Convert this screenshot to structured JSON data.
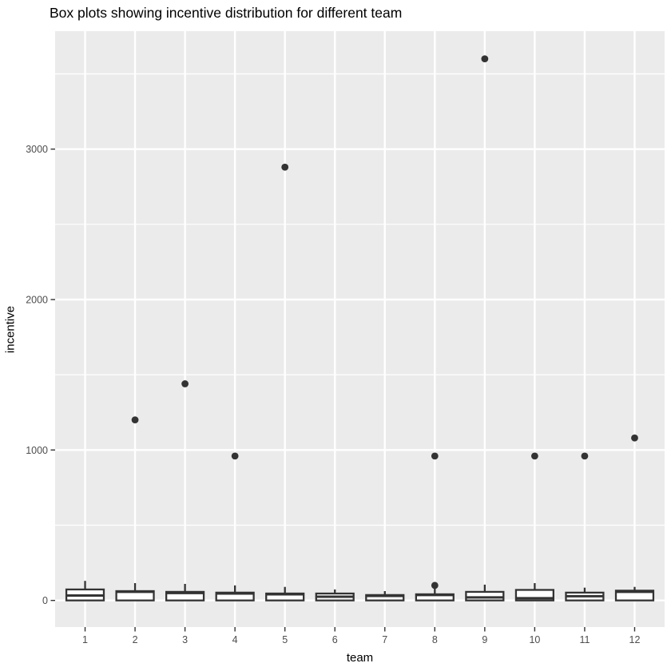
{
  "chart_data": {
    "type": "boxplot",
    "title": "Box plots showing incentive distribution for different team",
    "xlabel": "team",
    "ylabel": "incentive",
    "x_categories": [
      "1",
      "2",
      "3",
      "4",
      "5",
      "6",
      "7",
      "8",
      "9",
      "10",
      "11",
      "12"
    ],
    "y_ticks": [
      0,
      1000,
      2000,
      3000
    ],
    "y_minor_ticks": [
      500,
      1500,
      2500,
      3500
    ],
    "ylim": [
      -177,
      3784
    ],
    "grid": "on",
    "legend": "none",
    "boxes": [
      {
        "team": "1",
        "min": 0,
        "q1": 0,
        "median": 33,
        "q3": 73,
        "whisker_high": 130,
        "outliers": []
      },
      {
        "team": "2",
        "min": 0,
        "q1": 0,
        "median": 57,
        "q3": 62,
        "whisker_high": 115,
        "outliers": [
          1200
        ]
      },
      {
        "team": "3",
        "min": 0,
        "q1": 0,
        "median": 49,
        "q3": 57,
        "whisker_high": 110,
        "outliers": [
          1440
        ]
      },
      {
        "team": "4",
        "min": 0,
        "q1": 0,
        "median": 46,
        "q3": 52,
        "whisker_high": 100,
        "outliers": [
          960
        ]
      },
      {
        "team": "5",
        "min": 0,
        "q1": 0,
        "median": 41,
        "q3": 46,
        "whisker_high": 90,
        "outliers": [
          2880
        ]
      },
      {
        "team": "6",
        "min": 0,
        "q1": 0,
        "median": 25,
        "q3": 46,
        "whisker_high": 73,
        "outliers": []
      },
      {
        "team": "7",
        "min": 0,
        "q1": 0,
        "median": 30,
        "q3": 36,
        "whisker_high": 62,
        "outliers": []
      },
      {
        "team": "8",
        "min": 0,
        "q1": 0,
        "median": 36,
        "q3": 41,
        "whisker_high": 78,
        "outliers": [
          100,
          960
        ]
      },
      {
        "team": "9",
        "min": 0,
        "q1": 0,
        "median": 20,
        "q3": 57,
        "whisker_high": 105,
        "outliers": [
          3600
        ]
      },
      {
        "team": "10",
        "min": 0,
        "q1": 0,
        "median": 15,
        "q3": 70,
        "whisker_high": 115,
        "outliers": [
          960
        ]
      },
      {
        "team": "11",
        "min": 0,
        "q1": 0,
        "median": 28,
        "q3": 52,
        "whisker_high": 85,
        "outliers": [
          960
        ]
      },
      {
        "team": "12",
        "min": 0,
        "q1": 0,
        "median": 57,
        "q3": 65,
        "whisker_high": 90,
        "outliers": [
          1080
        ]
      }
    ],
    "colors": {
      "panel_background": "#EBEBEB",
      "gridline": "#FFFFFF",
      "box_stroke": "#333333",
      "box_fill": "#FFFFFF",
      "outlier_point": "#333333",
      "tick_mark": "#333333",
      "tick_label": "#4D4D4D",
      "text": "#000000"
    }
  }
}
